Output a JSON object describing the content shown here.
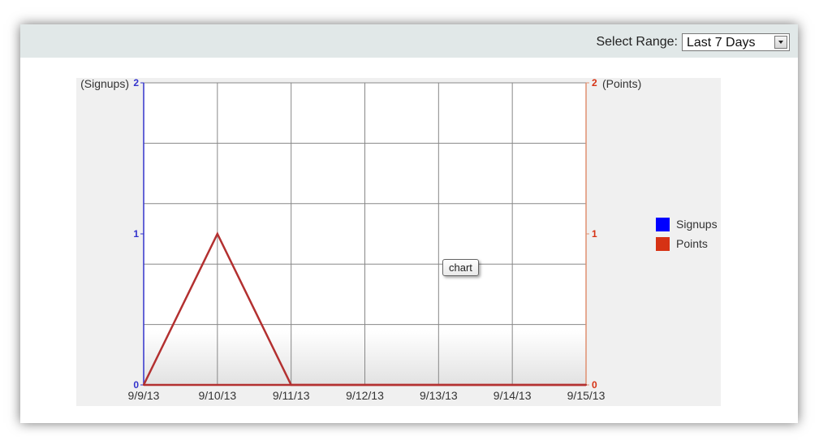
{
  "header": {
    "range_label": "Select Range:",
    "range_value": "Last 7 Days"
  },
  "tooltip": "chart",
  "colors": {
    "signups": "#0000ff",
    "points": "#d63214",
    "line": "#b33030",
    "left_axis": "#3333cc",
    "right_axis": "#e09070",
    "plot_bg": "#f0f0f0",
    "grid": "#888888"
  },
  "chart_data": {
    "type": "line",
    "categories": [
      "9/9/13",
      "9/10/13",
      "9/11/13",
      "9/12/13",
      "9/13/13",
      "9/14/13",
      "9/15/13"
    ],
    "series": [
      {
        "name": "Signups",
        "axis": "left",
        "values": [
          0,
          1,
          0,
          0,
          0,
          0,
          0
        ]
      },
      {
        "name": "Points",
        "axis": "right",
        "values": [
          0,
          0,
          0,
          0,
          0,
          0,
          0
        ]
      }
    ],
    "left_axis": {
      "label": "(Signups)",
      "ylim": [
        0,
        2
      ],
      "ticks": [
        "0",
        "1",
        "2"
      ]
    },
    "right_axis": {
      "label": "(Points)",
      "ylim": [
        0,
        2
      ],
      "ticks": [
        "0",
        "1",
        "2"
      ]
    },
    "grid": true,
    "legend": {
      "placement": "right",
      "entries": [
        "Signups",
        "Points"
      ]
    }
  }
}
